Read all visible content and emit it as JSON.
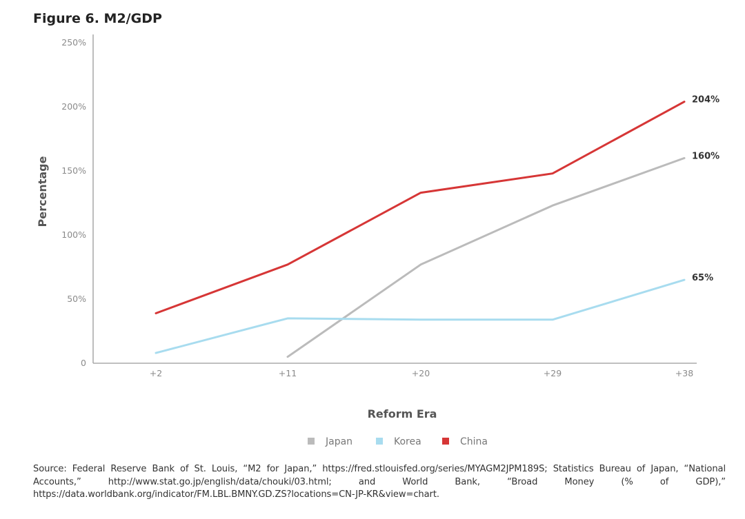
{
  "figure_title": "Figure 6. M2/GDP",
  "source_text": "Source: Federal Reserve Bank of St. Louis, “M2 for Japan,” https://fred.stlouisfed.org/series/MYAGM2JPM189S; Statistics Bureau of Japan, “National Accounts,” http://www.stat.go.jp/english/data/chouki/03.html; and World Bank, “Broad Money (% of GDP),” https://data.worldbank.org/indicator/FM.LBL.BMNY.GD.ZS?locations=CN-JP-KR&view=chart.",
  "chart_data": {
    "type": "line",
    "title": "Figure 6. M2/GDP",
    "xlabel": "Reform Era",
    "ylabel": "Percentage",
    "categories": [
      "+2",
      "+11",
      "+20",
      "+29",
      "+38"
    ],
    "ylim": [
      0,
      250
    ],
    "yticks": [
      0,
      50,
      100,
      150,
      200,
      250
    ],
    "ytick_labels": [
      "0",
      "50%",
      "100%",
      "150%",
      "200%",
      "250%"
    ],
    "grid": false,
    "legend_position": "bottom",
    "series": [
      {
        "name": "Japan",
        "color": "#bbbbbb",
        "values": [
          null,
          5,
          77,
          123,
          160
        ],
        "end_label": "160%"
      },
      {
        "name": "Korea",
        "color": "#a8dcef",
        "values": [
          8,
          35,
          34,
          34,
          65
        ],
        "end_label": "65%"
      },
      {
        "name": "China",
        "color": "#d63636",
        "values": [
          39,
          77,
          133,
          148,
          204
        ],
        "end_label": "204%"
      }
    ]
  }
}
